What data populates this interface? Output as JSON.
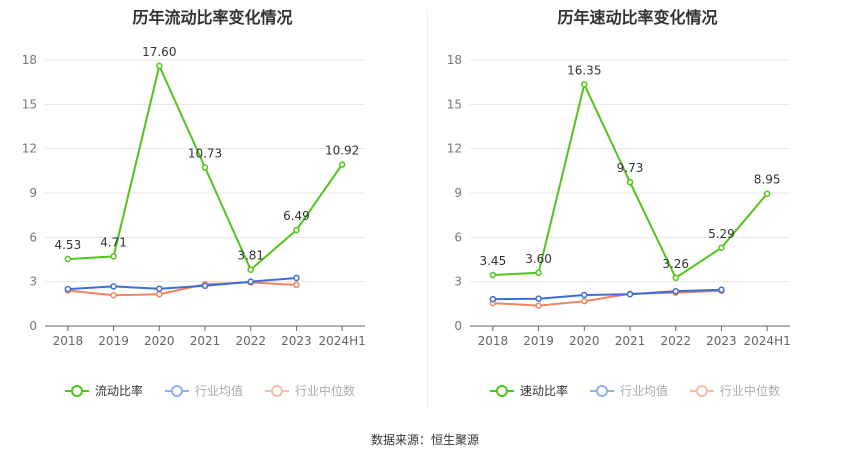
{
  "source": "数据来源：恒生聚源",
  "chart_data": [
    {
      "type": "line",
      "title": "历年流动比率变化情况",
      "categories": [
        "2018",
        "2019",
        "2020",
        "2021",
        "2022",
        "2023",
        "2024H1"
      ],
      "ylim": [
        0,
        18
      ],
      "yticks": [
        0,
        3,
        6,
        9,
        12,
        15,
        18
      ],
      "grid": true,
      "legend_position": "bottom",
      "series": [
        {
          "name": "流动比率",
          "color": "#52c41a",
          "labeled": true,
          "values": [
            4.53,
            4.71,
            17.6,
            10.73,
            3.81,
            6.49,
            10.92
          ],
          "labels": [
            "4.53",
            "4.71",
            "17.60",
            "10.73",
            "3.81",
            "6.49",
            "10.92"
          ]
        },
        {
          "name": "行业均值",
          "color": "#3b6fd6",
          "labeled": false,
          "values": [
            2.5,
            2.68,
            2.52,
            2.72,
            3.0,
            3.25,
            null
          ]
        },
        {
          "name": "行业中位数",
          "color": "#f08560",
          "labeled": false,
          "values": [
            2.4,
            2.08,
            2.15,
            2.82,
            2.95,
            2.78,
            null
          ]
        }
      ]
    },
    {
      "type": "line",
      "title": "历年速动比率变化情况",
      "categories": [
        "2018",
        "2019",
        "2020",
        "2021",
        "2022",
        "2023",
        "2024H1"
      ],
      "ylim": [
        0,
        18
      ],
      "yticks": [
        0,
        3,
        6,
        9,
        12,
        15,
        18
      ],
      "grid": true,
      "legend_position": "bottom",
      "series": [
        {
          "name": "速动比率",
          "color": "#52c41a",
          "labeled": true,
          "values": [
            3.45,
            3.6,
            16.35,
            9.73,
            3.26,
            5.29,
            8.95
          ],
          "labels": [
            "3.45",
            "3.60",
            "16.35",
            "9.73",
            "3.26",
            "5.29",
            "8.95"
          ]
        },
        {
          "name": "行业均值",
          "color": "#3b6fd6",
          "labeled": false,
          "values": [
            1.82,
            1.85,
            2.1,
            2.15,
            2.35,
            2.45,
            null
          ]
        },
        {
          "name": "行业中位数",
          "color": "#f08560",
          "labeled": false,
          "values": [
            1.55,
            1.38,
            1.68,
            2.18,
            2.25,
            2.38,
            null
          ]
        }
      ]
    }
  ]
}
